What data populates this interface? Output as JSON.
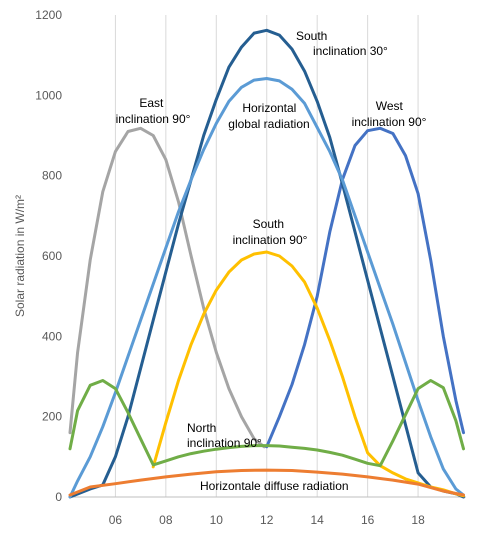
{
  "chart_data": {
    "type": "line",
    "title": "",
    "xlabel": "",
    "ylabel": "Solar radiation in W/m²",
    "xlim": [
      4.2,
      19.9
    ],
    "ylim": [
      0,
      1200
    ],
    "y_ticks": [
      0,
      200,
      400,
      600,
      800,
      1000,
      1200
    ],
    "y_tick_labels": [
      "0",
      "200",
      "400",
      "600",
      "800",
      "1000",
      "1200"
    ],
    "x_ticks": [
      6,
      8,
      10,
      12,
      14,
      16,
      18
    ],
    "x_tick_labels": [
      "06",
      "08",
      "10",
      "12",
      "14",
      "16",
      "18"
    ],
    "grid": {
      "x": true,
      "y": false
    },
    "legend": "none",
    "series": [
      {
        "id": "east",
        "color": "#a5a5a5",
        "x": [
          4.2,
          4.5,
          5.0,
          5.5,
          6.0,
          6.5,
          7.0,
          7.5,
          8.0,
          8.5,
          9.0,
          9.5,
          10.0,
          10.5,
          11.0,
          11.5,
          11.9
        ],
        "y": [
          160,
          360,
          590,
          760,
          860,
          910,
          918,
          900,
          840,
          735,
          600,
          470,
          360,
          270,
          200,
          145,
          125
        ]
      },
      {
        "id": "west",
        "color": "#4472c4",
        "x": [
          12.0,
          12.5,
          13.0,
          13.5,
          14.0,
          14.5,
          15.0,
          15.5,
          16.0,
          16.5,
          17.0,
          17.5,
          18.0,
          18.5,
          19.0,
          19.5,
          19.8
        ],
        "y": [
          125,
          200,
          280,
          380,
          500,
          660,
          790,
          875,
          912,
          918,
          905,
          850,
          755,
          590,
          400,
          240,
          160
        ]
      },
      {
        "id": "south30",
        "color": "#255e91",
        "x": [
          4.2,
          5.0,
          5.5,
          6.0,
          6.5,
          7.0,
          7.5,
          8.0,
          8.5,
          9.0,
          9.5,
          10.0,
          10.5,
          11.0,
          11.5,
          12.0,
          12.5,
          13.0,
          13.5,
          14.0,
          14.5,
          15.0,
          15.5,
          16.0,
          16.5,
          17.0,
          17.5,
          18.0,
          18.5,
          19.0,
          19.5,
          19.8
        ],
        "y": [
          0,
          20,
          30,
          100,
          200,
          320,
          440,
          560,
          680,
          790,
          900,
          990,
          1070,
          1120,
          1155,
          1162,
          1150,
          1115,
          1060,
          985,
          895,
          780,
          660,
          540,
          420,
          300,
          180,
          60,
          25,
          15,
          8,
          0
        ]
      },
      {
        "id": "horizontal_global",
        "color": "#5b9bd5",
        "x": [
          4.2,
          4.5,
          5.0,
          5.5,
          6.0,
          6.5,
          7.0,
          7.5,
          8.0,
          8.5,
          9.0,
          9.5,
          10.0,
          10.5,
          11.0,
          11.5,
          12.0,
          12.5,
          13.0,
          13.5,
          14.0,
          14.5,
          15.0,
          15.5,
          16.0,
          16.5,
          17.0,
          17.5,
          18.0,
          18.5,
          19.0,
          19.5,
          19.8
        ],
        "y": [
          0,
          40,
          100,
          175,
          260,
          350,
          440,
          530,
          620,
          710,
          790,
          865,
          930,
          985,
          1020,
          1038,
          1042,
          1036,
          1015,
          980,
          920,
          860,
          790,
          700,
          610,
          520,
          430,
          335,
          240,
          150,
          70,
          20,
          5
        ]
      },
      {
        "id": "south90",
        "color": "#ffc000",
        "x": [
          7.5,
          8.0,
          8.5,
          9.0,
          9.5,
          10.0,
          10.5,
          11.0,
          11.5,
          12.0,
          12.5,
          13.0,
          13.5,
          14.0,
          14.5,
          15.0,
          15.5,
          16.0,
          16.5,
          17.0,
          17.5,
          18.0,
          18.5,
          19.0,
          19.5,
          19.8
        ],
        "y": [
          75,
          185,
          290,
          380,
          455,
          515,
          560,
          590,
          605,
          610,
          600,
          575,
          535,
          470,
          390,
          300,
          200,
          110,
          78,
          60,
          45,
          35,
          25,
          18,
          8,
          3
        ]
      },
      {
        "id": "north90",
        "color": "#70ad47",
        "x": [
          4.2,
          4.5,
          5.0,
          5.5,
          6.0,
          6.5,
          7.0,
          7.5,
          8.0,
          8.5,
          9.0,
          9.5,
          10.0,
          10.5,
          11.0,
          11.5,
          12.0,
          12.5,
          13.0,
          13.5,
          14.0,
          14.5,
          15.0,
          15.5,
          16.0,
          16.5,
          17.0,
          17.5,
          18.0,
          18.5,
          19.0,
          19.5,
          19.8
        ],
        "y": [
          120,
          215,
          278,
          290,
          270,
          210,
          145,
          80,
          90,
          100,
          108,
          114,
          119,
          123,
          126,
          128,
          128,
          127,
          124,
          121,
          117,
          111,
          104,
          94,
          84,
          78,
          140,
          205,
          270,
          290,
          272,
          190,
          120
        ]
      },
      {
        "id": "horizontal_diffuse",
        "color": "#ed7d31",
        "x": [
          4.2,
          5.0,
          6.0,
          7.0,
          8.0,
          9.0,
          10.0,
          11.0,
          12.0,
          13.0,
          14.0,
          15.0,
          16.0,
          17.0,
          18.0,
          19.0,
          19.8
        ],
        "y": [
          5,
          25,
          33,
          42,
          50,
          57,
          63,
          66,
          67,
          66,
          62,
          57,
          50,
          42,
          32,
          15,
          5
        ]
      }
    ],
    "annotations": [
      {
        "id": "south30",
        "lines": [
          "South",
          "inclination 30°"
        ]
      },
      {
        "id": "east",
        "lines": [
          "East",
          "inclination 90°"
        ]
      },
      {
        "id": "horizontal_global",
        "lines": [
          "Horizontal",
          "global radiation"
        ]
      },
      {
        "id": "west",
        "lines": [
          "West",
          "inclination 90°"
        ]
      },
      {
        "id": "south90",
        "lines": [
          "South",
          "inclination 90°"
        ]
      },
      {
        "id": "north90",
        "lines": [
          "North",
          "inclination 90°"
        ]
      },
      {
        "id": "horizontal_diffuse",
        "lines": [
          "Horizontale diffuse radiation"
        ]
      }
    ]
  }
}
